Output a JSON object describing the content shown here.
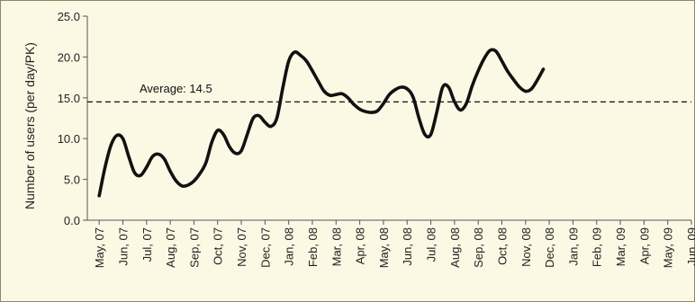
{
  "chart_data": {
    "type": "line",
    "ylabel": "Number of users (per day/PK)",
    "xlabel": "",
    "ylim": [
      0,
      25
    ],
    "yticks": [
      "0.0",
      "5.0",
      "10.0",
      "15.0",
      "20.0",
      "25.0"
    ],
    "categories": [
      "May, 07",
      "Jun, 07",
      "Jul, 07",
      "Aug, 07",
      "Sep, 07",
      "Oct, 07",
      "Nov, 07",
      "Dec, 07",
      "Jan, 08",
      "Feb, 08",
      "Mar, 08",
      "Apr, 08",
      "May, 08",
      "Jun, 08",
      "Jul, 08",
      "Aug, 08",
      "Sep, 08",
      "Oct, 08",
      "Nov, 08",
      "Dec, 08",
      "Jan, 09",
      "Feb, 09",
      "Mar, 09",
      "Apr, 09",
      "May, 09",
      "Jun, 09"
    ],
    "series": [
      {
        "values": [
          [
            0.0,
            3.0
          ],
          [
            0.25,
            6.5
          ],
          [
            0.5,
            9.2
          ],
          [
            0.75,
            10.4
          ],
          [
            1.0,
            10.0
          ],
          [
            1.25,
            7.8
          ],
          [
            1.5,
            5.8
          ],
          [
            1.75,
            5.5
          ],
          [
            2.0,
            6.5
          ],
          [
            2.25,
            7.8
          ],
          [
            2.5,
            8.1
          ],
          [
            2.75,
            7.5
          ],
          [
            3.0,
            6.0
          ],
          [
            3.25,
            4.8
          ],
          [
            3.5,
            4.2
          ],
          [
            3.75,
            4.3
          ],
          [
            4.0,
            4.8
          ],
          [
            4.25,
            5.7
          ],
          [
            4.5,
            7.0
          ],
          [
            4.75,
            9.5
          ],
          [
            5.0,
            11.0
          ],
          [
            5.25,
            10.5
          ],
          [
            5.5,
            9.0
          ],
          [
            5.75,
            8.2
          ],
          [
            6.0,
            8.5
          ],
          [
            6.25,
            10.5
          ],
          [
            6.5,
            12.5
          ],
          [
            6.75,
            12.8
          ],
          [
            7.0,
            12.0
          ],
          [
            7.25,
            11.5
          ],
          [
            7.5,
            12.5
          ],
          [
            7.75,
            16.2
          ],
          [
            8.0,
            19.5
          ],
          [
            8.25,
            20.6
          ],
          [
            8.5,
            20.2
          ],
          [
            8.75,
            19.5
          ],
          [
            9.0,
            18.3
          ],
          [
            9.25,
            17.0
          ],
          [
            9.5,
            15.8
          ],
          [
            9.75,
            15.3
          ],
          [
            10.0,
            15.4
          ],
          [
            10.25,
            15.5
          ],
          [
            10.5,
            15.0
          ],
          [
            10.75,
            14.2
          ],
          [
            11.0,
            13.6
          ],
          [
            11.25,
            13.3
          ],
          [
            11.5,
            13.2
          ],
          [
            11.75,
            13.4
          ],
          [
            12.0,
            14.3
          ],
          [
            12.25,
            15.4
          ],
          [
            12.5,
            16.0
          ],
          [
            12.75,
            16.3
          ],
          [
            13.0,
            16.1
          ],
          [
            13.25,
            15.1
          ],
          [
            13.5,
            12.5
          ],
          [
            13.75,
            10.5
          ],
          [
            14.0,
            10.5
          ],
          [
            14.25,
            13.2
          ],
          [
            14.5,
            16.3
          ],
          [
            14.75,
            16.3
          ],
          [
            15.0,
            14.5
          ],
          [
            15.25,
            13.5
          ],
          [
            15.5,
            14.3
          ],
          [
            15.75,
            16.5
          ],
          [
            16.0,
            18.3
          ],
          [
            16.25,
            19.8
          ],
          [
            16.5,
            20.8
          ],
          [
            16.75,
            20.7
          ],
          [
            17.0,
            19.5
          ],
          [
            17.25,
            18.2
          ],
          [
            17.5,
            17.2
          ],
          [
            17.75,
            16.3
          ],
          [
            18.0,
            15.8
          ],
          [
            18.25,
            16.1
          ],
          [
            18.5,
            17.2
          ],
          [
            18.75,
            18.5
          ]
        ]
      }
    ],
    "average": 14.5,
    "annotation": "Average: 14.5",
    "grid": false,
    "legend": "none"
  }
}
